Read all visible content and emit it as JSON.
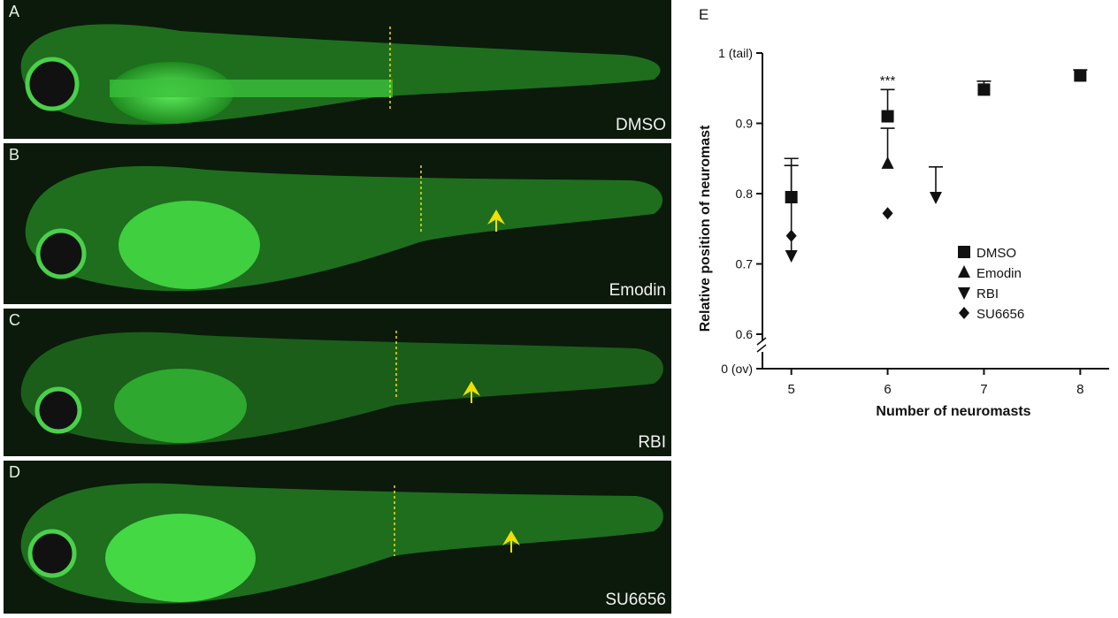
{
  "panels": [
    {
      "letter": "A",
      "label": "DMSO",
      "arrow": false
    },
    {
      "letter": "B",
      "label": "Emodin",
      "arrow": true
    },
    {
      "letter": "C",
      "label": "RBI",
      "arrow": true
    },
    {
      "letter": "D",
      "label": "SU6656",
      "arrow": true
    }
  ],
  "colors": {
    "fluorescence": "#39d439",
    "panel_bg": "#0b1a0b",
    "dashed_line": "#f0e000",
    "arrow": "#f0e000"
  },
  "chart_data": {
    "type": "scatter",
    "panel_letter": "E",
    "xlabel": "Number of neuromasts",
    "ylabel": "Relative position of neuromast",
    "x_ticks": [
      "5",
      "6",
      "7",
      "8"
    ],
    "xlim": [
      4.7,
      8.3
    ],
    "y_ticks": [
      {
        "value": 1.0,
        "label": "1 (tail)"
      },
      {
        "value": 0.9,
        "label": "0.9"
      },
      {
        "value": 0.8,
        "label": "0.8"
      },
      {
        "value": 0.7,
        "label": "0.7"
      },
      {
        "value": 0.6,
        "label": "0.6"
      }
    ],
    "y_origin_label": "0 (ov)",
    "ylim": [
      0.6,
      1.0
    ],
    "axis_break": true,
    "legend_position": "right",
    "annotations": [
      {
        "x": 6,
        "y": 0.955,
        "text": "***"
      }
    ],
    "series": [
      {
        "name": "DMSO",
        "marker": "square",
        "points": [
          {
            "x": 5,
            "y": 0.795,
            "err": 0.055
          },
          {
            "x": 6,
            "y": 0.91,
            "err": 0.038
          },
          {
            "x": 7,
            "y": 0.948,
            "err": 0.012
          },
          {
            "x": 8,
            "y": 0.968,
            "err": 0.008
          }
        ]
      },
      {
        "name": "Emodin",
        "marker": "triangle-up",
        "points": [
          {
            "x": 6,
            "y": 0.843,
            "err": 0.05
          }
        ]
      },
      {
        "name": "RBI",
        "marker": "triangle-down",
        "points": [
          {
            "x": 5,
            "y": 0.712,
            "err": 0.128
          },
          {
            "x": 6.5,
            "y": 0.795,
            "err": 0.043
          }
        ]
      },
      {
        "name": "SU6656",
        "marker": "diamond",
        "points": [
          {
            "x": 5,
            "y": 0.74,
            "err": 0.0
          },
          {
            "x": 6,
            "y": 0.772,
            "err": 0.0
          }
        ]
      }
    ]
  }
}
